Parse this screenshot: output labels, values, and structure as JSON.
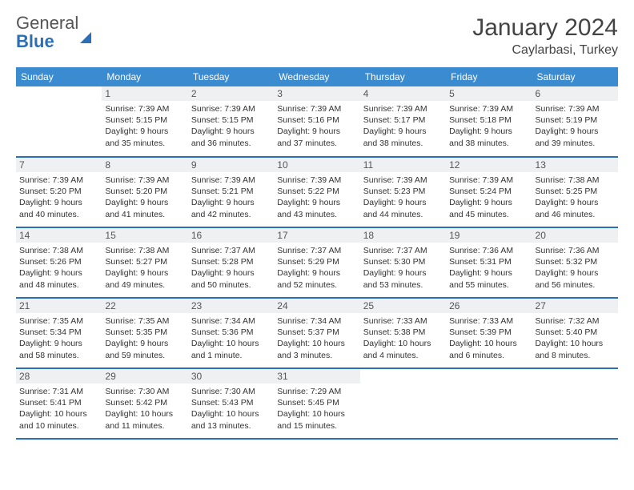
{
  "logo": {
    "text_gray": "General",
    "text_blue": "Blue"
  },
  "title": "January 2024",
  "location": "Caylarbasi, Turkey",
  "colors": {
    "header_bg": "#3a8bd0",
    "header_text": "#ffffff",
    "row_border": "#2c6fb5",
    "daynum_bg": "#eef0f1",
    "text": "#333333"
  },
  "typography": {
    "title_fontsize": 30,
    "location_fontsize": 16,
    "dayhead_fontsize": 12,
    "cell_fontsize": 10.5
  },
  "day_headers": [
    "Sunday",
    "Monday",
    "Tuesday",
    "Wednesday",
    "Thursday",
    "Friday",
    "Saturday"
  ],
  "weeks": [
    [
      {
        "day": "",
        "lines": [
          "",
          "",
          "",
          ""
        ]
      },
      {
        "day": "1",
        "lines": [
          "Sunrise: 7:39 AM",
          "Sunset: 5:15 PM",
          "Daylight: 9 hours",
          "and 35 minutes."
        ]
      },
      {
        "day": "2",
        "lines": [
          "Sunrise: 7:39 AM",
          "Sunset: 5:15 PM",
          "Daylight: 9 hours",
          "and 36 minutes."
        ]
      },
      {
        "day": "3",
        "lines": [
          "Sunrise: 7:39 AM",
          "Sunset: 5:16 PM",
          "Daylight: 9 hours",
          "and 37 minutes."
        ]
      },
      {
        "day": "4",
        "lines": [
          "Sunrise: 7:39 AM",
          "Sunset: 5:17 PM",
          "Daylight: 9 hours",
          "and 38 minutes."
        ]
      },
      {
        "day": "5",
        "lines": [
          "Sunrise: 7:39 AM",
          "Sunset: 5:18 PM",
          "Daylight: 9 hours",
          "and 38 minutes."
        ]
      },
      {
        "day": "6",
        "lines": [
          "Sunrise: 7:39 AM",
          "Sunset: 5:19 PM",
          "Daylight: 9 hours",
          "and 39 minutes."
        ]
      }
    ],
    [
      {
        "day": "7",
        "lines": [
          "Sunrise: 7:39 AM",
          "Sunset: 5:20 PM",
          "Daylight: 9 hours",
          "and 40 minutes."
        ]
      },
      {
        "day": "8",
        "lines": [
          "Sunrise: 7:39 AM",
          "Sunset: 5:20 PM",
          "Daylight: 9 hours",
          "and 41 minutes."
        ]
      },
      {
        "day": "9",
        "lines": [
          "Sunrise: 7:39 AM",
          "Sunset: 5:21 PM",
          "Daylight: 9 hours",
          "and 42 minutes."
        ]
      },
      {
        "day": "10",
        "lines": [
          "Sunrise: 7:39 AM",
          "Sunset: 5:22 PM",
          "Daylight: 9 hours",
          "and 43 minutes."
        ]
      },
      {
        "day": "11",
        "lines": [
          "Sunrise: 7:39 AM",
          "Sunset: 5:23 PM",
          "Daylight: 9 hours",
          "and 44 minutes."
        ]
      },
      {
        "day": "12",
        "lines": [
          "Sunrise: 7:39 AM",
          "Sunset: 5:24 PM",
          "Daylight: 9 hours",
          "and 45 minutes."
        ]
      },
      {
        "day": "13",
        "lines": [
          "Sunrise: 7:38 AM",
          "Sunset: 5:25 PM",
          "Daylight: 9 hours",
          "and 46 minutes."
        ]
      }
    ],
    [
      {
        "day": "14",
        "lines": [
          "Sunrise: 7:38 AM",
          "Sunset: 5:26 PM",
          "Daylight: 9 hours",
          "and 48 minutes."
        ]
      },
      {
        "day": "15",
        "lines": [
          "Sunrise: 7:38 AM",
          "Sunset: 5:27 PM",
          "Daylight: 9 hours",
          "and 49 minutes."
        ]
      },
      {
        "day": "16",
        "lines": [
          "Sunrise: 7:37 AM",
          "Sunset: 5:28 PM",
          "Daylight: 9 hours",
          "and 50 minutes."
        ]
      },
      {
        "day": "17",
        "lines": [
          "Sunrise: 7:37 AM",
          "Sunset: 5:29 PM",
          "Daylight: 9 hours",
          "and 52 minutes."
        ]
      },
      {
        "day": "18",
        "lines": [
          "Sunrise: 7:37 AM",
          "Sunset: 5:30 PM",
          "Daylight: 9 hours",
          "and 53 minutes."
        ]
      },
      {
        "day": "19",
        "lines": [
          "Sunrise: 7:36 AM",
          "Sunset: 5:31 PM",
          "Daylight: 9 hours",
          "and 55 minutes."
        ]
      },
      {
        "day": "20",
        "lines": [
          "Sunrise: 7:36 AM",
          "Sunset: 5:32 PM",
          "Daylight: 9 hours",
          "and 56 minutes."
        ]
      }
    ],
    [
      {
        "day": "21",
        "lines": [
          "Sunrise: 7:35 AM",
          "Sunset: 5:34 PM",
          "Daylight: 9 hours",
          "and 58 minutes."
        ]
      },
      {
        "day": "22",
        "lines": [
          "Sunrise: 7:35 AM",
          "Sunset: 5:35 PM",
          "Daylight: 9 hours",
          "and 59 minutes."
        ]
      },
      {
        "day": "23",
        "lines": [
          "Sunrise: 7:34 AM",
          "Sunset: 5:36 PM",
          "Daylight: 10 hours",
          "and 1 minute."
        ]
      },
      {
        "day": "24",
        "lines": [
          "Sunrise: 7:34 AM",
          "Sunset: 5:37 PM",
          "Daylight: 10 hours",
          "and 3 minutes."
        ]
      },
      {
        "day": "25",
        "lines": [
          "Sunrise: 7:33 AM",
          "Sunset: 5:38 PM",
          "Daylight: 10 hours",
          "and 4 minutes."
        ]
      },
      {
        "day": "26",
        "lines": [
          "Sunrise: 7:33 AM",
          "Sunset: 5:39 PM",
          "Daylight: 10 hours",
          "and 6 minutes."
        ]
      },
      {
        "day": "27",
        "lines": [
          "Sunrise: 7:32 AM",
          "Sunset: 5:40 PM",
          "Daylight: 10 hours",
          "and 8 minutes."
        ]
      }
    ],
    [
      {
        "day": "28",
        "lines": [
          "Sunrise: 7:31 AM",
          "Sunset: 5:41 PM",
          "Daylight: 10 hours",
          "and 10 minutes."
        ]
      },
      {
        "day": "29",
        "lines": [
          "Sunrise: 7:30 AM",
          "Sunset: 5:42 PM",
          "Daylight: 10 hours",
          "and 11 minutes."
        ]
      },
      {
        "day": "30",
        "lines": [
          "Sunrise: 7:30 AM",
          "Sunset: 5:43 PM",
          "Daylight: 10 hours",
          "and 13 minutes."
        ]
      },
      {
        "day": "31",
        "lines": [
          "Sunrise: 7:29 AM",
          "Sunset: 5:45 PM",
          "Daylight: 10 hours",
          "and 15 minutes."
        ]
      },
      {
        "day": "",
        "lines": [
          "",
          "",
          "",
          ""
        ]
      },
      {
        "day": "",
        "lines": [
          "",
          "",
          "",
          ""
        ]
      },
      {
        "day": "",
        "lines": [
          "",
          "",
          "",
          ""
        ]
      }
    ]
  ]
}
